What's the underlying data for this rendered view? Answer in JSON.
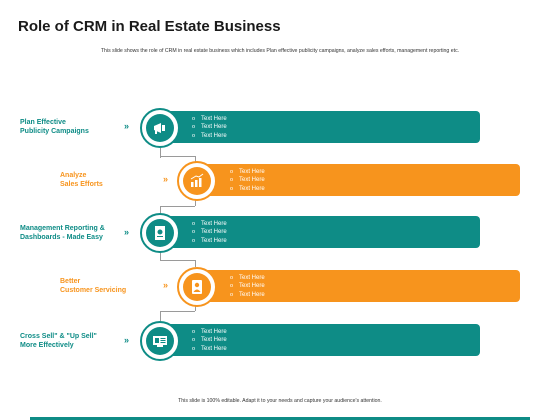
{
  "title": "Role of CRM in Real Estate Business",
  "subtitle": "This slide shows the role of CRM in real estate business which includes Plan effective publicity campaigns, analyze sales efforts, management reporting etc.",
  "footer": "This slide is 100% editable. Adapt it to your needs and capture your audience's attention.",
  "colors": {
    "teal": "#0e8c86",
    "orange": "#f7941d"
  },
  "chevron": "»",
  "rows": [
    {
      "label": [
        "Plan Effective",
        "Publicity Campaigns"
      ],
      "color": "teal",
      "icon": "megaphone-icon",
      "items": [
        "Text Here",
        "Text Here",
        "Text Here"
      ]
    },
    {
      "label": [
        "Analyze",
        "Sales Efforts"
      ],
      "color": "orange",
      "icon": "bar-chart-icon",
      "items": [
        "Text Here",
        "Text Here",
        "Text Here"
      ]
    },
    {
      "label": [
        "Management Reporting &",
        "Dashboards - Made Easy"
      ],
      "color": "teal",
      "icon": "report-icon",
      "items": [
        "Text Here",
        "Text Here",
        "Text Here"
      ]
    },
    {
      "label": [
        "Better",
        "Customer Servicing"
      ],
      "color": "orange",
      "icon": "customer-icon",
      "items": [
        "Text Here",
        "Text Here",
        "Text Here"
      ]
    },
    {
      "label": [
        "Cross Sell\" & \"Up Sell\"",
        "More Effectively"
      ],
      "color": "teal",
      "icon": "dashboard-icon",
      "items": [
        "Text Here",
        "Text Here",
        "Text Here"
      ]
    }
  ]
}
